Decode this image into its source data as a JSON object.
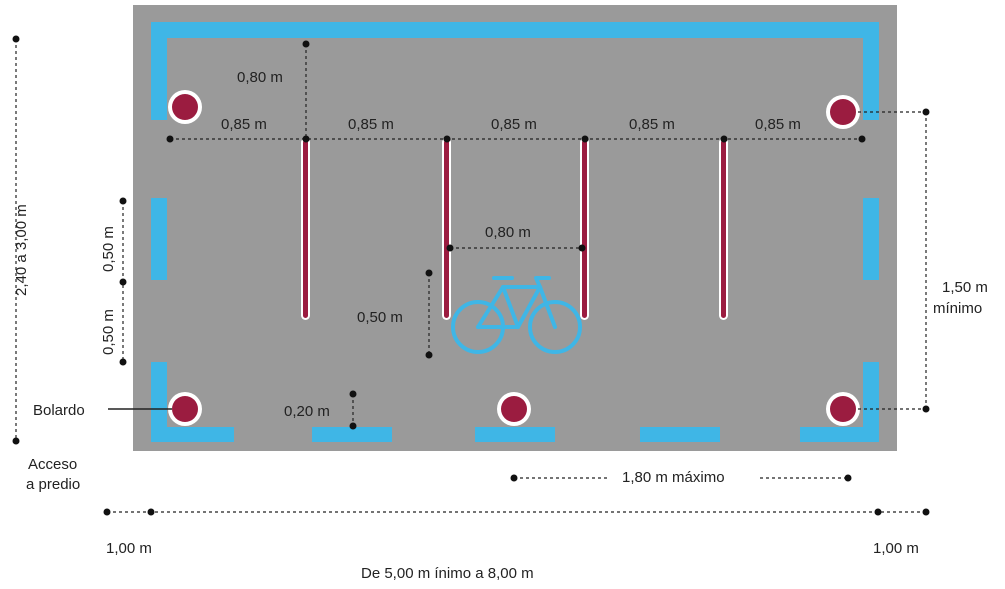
{
  "colors": {
    "pavement": "#9a9a9a",
    "edge_marking": "#3fb6e6",
    "bollard": "#9b1c40",
    "bollard_ring": "#ffffff",
    "rack": "#9b1c40",
    "bicycle_symbol": "#3fb6e6",
    "dimension_line": "#222222"
  },
  "icons": {
    "bicycle": "bicycle-icon",
    "bollard": "bollard-marker"
  },
  "labels": {
    "top_gap": "0,80 m",
    "spacing_1": "0,85 m",
    "spacing_2": "0,85 m",
    "spacing_3": "0,85 m",
    "spacing_4": "0,85 m",
    "spacing_5": "0,85 m",
    "rack_width": "0,80 m",
    "rack_offset": "0,50 m",
    "bollard_offset": "0,20 m",
    "left_upper": "0,50 m",
    "left_lower": "0,50 m",
    "total_height": "2,40 a 3,00 m",
    "right_height_line1": "1,50 m",
    "right_height_line2": "mínimo",
    "bollard_callout": "Bolardo",
    "access_line1": "Acceso",
    "access_line2": "a predio",
    "bollard_spacing": "1,80 m  máximo",
    "margin_left": "1,00 m",
    "margin_right": "1,00 m",
    "total_width": "De 5,00 m ínimo a 8,00 m"
  }
}
